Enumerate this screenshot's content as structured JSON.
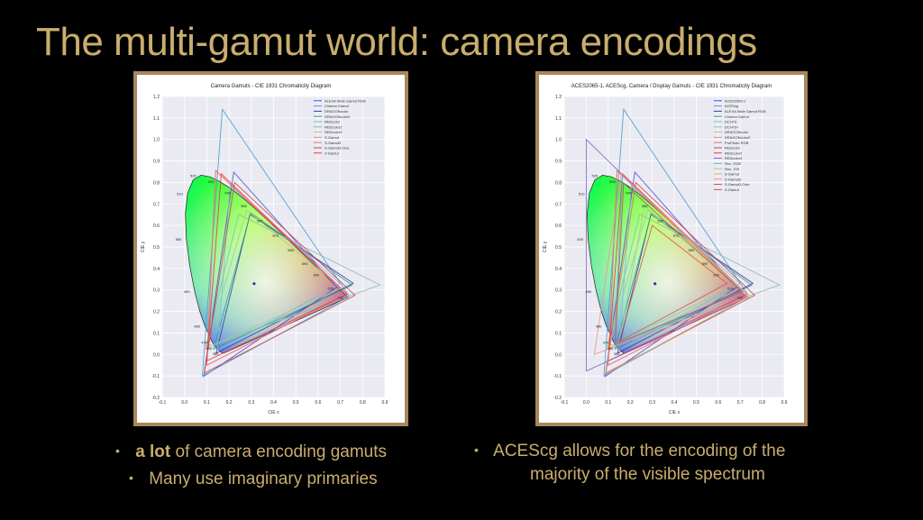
{
  "slide": {
    "title": "The multi-gamut world: camera encodings"
  },
  "left_chart": {
    "title": "Camera Gamuts - CIE 1931 Chromaticity Diagram",
    "xlabel": "CIE x",
    "ylabel": "CIE y",
    "legend": [
      "ALEXA Wide Gamut RGB",
      "Cinema Gamut",
      "DRAGONcolor",
      "DRAGONcolor2",
      "REDcolor",
      "REDcolor2",
      "REDcolor3",
      "S-Gamut",
      "S-Gamut3",
      "S-Gamut3.Cine",
      "V-Gamut"
    ]
  },
  "right_chart": {
    "title": "ACES2065-1, ACEScg, Camera / Display Gamuts - CIE 1931 Chromaticity Diagram",
    "xlabel": "CIE x",
    "ylabel": "CIE y",
    "legend": [
      "ACES2065-1",
      "ACEScg",
      "ALEXA Wide Gamut RGB",
      "Cinema Gamut",
      "DCI-P3",
      "DCI-P3+",
      "DRAGONcolor",
      "DRAGONcolor2",
      "ProPhoto RGB",
      "REDcolor",
      "REDcolor2",
      "REDcolor3",
      "Rec. 2020",
      "Rec. 709",
      "S-Gamut",
      "S-Gamut3",
      "S-Gamut3.Cine",
      "V-Gamut"
    ]
  },
  "axes": {
    "x_ticks": [
      "-0.1",
      "0.0",
      "0.1",
      "0.2",
      "0.3",
      "0.4",
      "0.5",
      "0.6",
      "0.7",
      "0.8",
      "0.9"
    ],
    "y_ticks": [
      "-0.2",
      "-0.1",
      "0.0",
      "0.1",
      "0.2",
      "0.3",
      "0.4",
      "0.5",
      "0.6",
      "0.7",
      "0.8",
      "0.9",
      "1.0",
      "1.1",
      "1.2"
    ],
    "wavelength_labels": [
      "520",
      "510",
      "530",
      "540",
      "550",
      "560",
      "570",
      "580",
      "590",
      "600",
      "620",
      "700",
      "500",
      "490",
      "480",
      "470",
      "460",
      "380"
    ]
  },
  "bullets_left": {
    "item1_bold": "a lot",
    "item1_rest": "of camera encoding gamuts",
    "item2": "Many use imaginary primaries"
  },
  "bullets_right": {
    "item1_line1": "ACEScg allows for the encoding of the",
    "item1_line2": "majority of the visible spectrum"
  },
  "colors": {
    "title": "#c9ad6d",
    "frame_border": "#a8875a",
    "background": "#000000"
  },
  "series_colors": [
    "#4b4bd6",
    "#4a9ad1",
    "#3a3a9a",
    "#2a9a9a",
    "#79b8e0",
    "#88c0a0",
    "#98d098",
    "#e88",
    "#e07070",
    "#d04040",
    "#ff3030",
    "#8060c0",
    "#60b0d0",
    "#90d090",
    "#e0b060",
    "#f09090",
    "#c05050",
    "#e05050"
  ]
}
